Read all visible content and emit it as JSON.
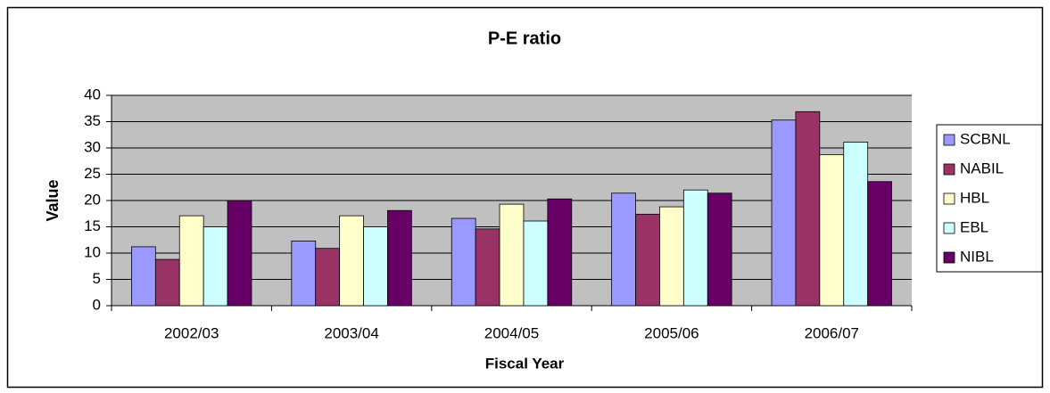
{
  "chart_data": {
    "type": "bar",
    "title": "P-E ratio",
    "x_label": "Fiscal Year",
    "y_label": "Value",
    "categories": [
      "2002/03",
      "2003/04",
      "2004/05",
      "2005/06",
      "2006/07"
    ],
    "series": [
      {
        "name": "SCBNL",
        "color": "#9999ff",
        "values": [
          11.2,
          12.3,
          16.6,
          21.4,
          35.3
        ]
      },
      {
        "name": "NABIL",
        "color": "#993366",
        "values": [
          8.8,
          10.9,
          14.6,
          17.4,
          36.9
        ]
      },
      {
        "name": "HBL",
        "color": "#ffffcc",
        "values": [
          17.1,
          17.1,
          19.3,
          18.8,
          28.7
        ]
      },
      {
        "name": "EBL",
        "color": "#ccffff",
        "values": [
          15.0,
          15.0,
          16.1,
          22.0,
          31.1
        ]
      },
      {
        "name": "NIBL",
        "color": "#660066",
        "values": [
          20.0,
          18.1,
          20.3,
          21.4,
          23.6
        ]
      }
    ],
    "ylim": [
      0,
      40
    ],
    "yticks": [
      0,
      5,
      10,
      15,
      20,
      25,
      30,
      35,
      40
    ],
    "grid": true,
    "legend": "right"
  }
}
